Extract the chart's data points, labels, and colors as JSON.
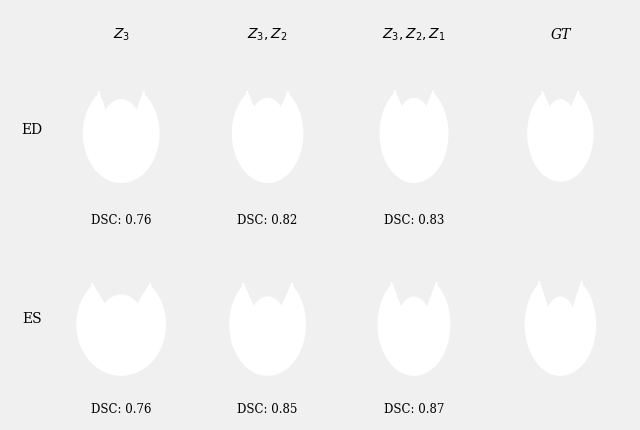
{
  "fig_width": 6.4,
  "fig_height": 4.3,
  "dpi": 100,
  "bg_color": "#f0f0f0",
  "cell_bg": "#000000",
  "shape_color": "#ffffff",
  "col_titles": [
    "$Z_3$",
    "$Z_3,Z_2$",
    "$Z_3,Z_2,Z_1$",
    "GT"
  ],
  "row_labels": [
    "ED",
    "ES"
  ],
  "dsc_ed": [
    "DSC: 0.76",
    "DSC: 0.82",
    "DSC: 0.83",
    ""
  ],
  "dsc_es": [
    "DSC: 0.76",
    "DSC: 0.85",
    "DSC: 0.87",
    ""
  ],
  "col_title_fontsize": 10,
  "row_label_fontsize": 10,
  "dsc_fontsize": 8.5
}
